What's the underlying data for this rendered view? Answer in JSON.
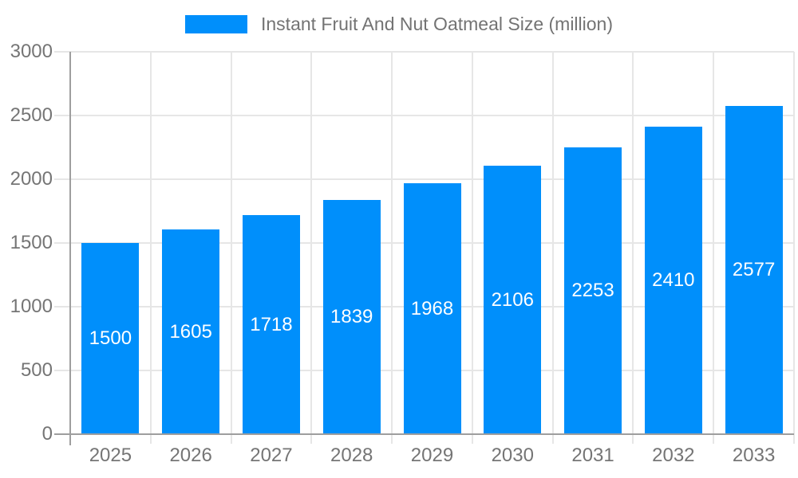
{
  "chart_data": {
    "type": "bar",
    "title": "Instant Fruit And Nut Oatmeal Size (million)",
    "series": [
      {
        "name": "Instant Fruit And Nut Oatmeal Size (million)",
        "values": [
          1500,
          1605,
          1718,
          1839,
          1968,
          2106,
          2253,
          2410,
          2577
        ]
      }
    ],
    "categories": [
      "2025",
      "2026",
      "2027",
      "2028",
      "2029",
      "2030",
      "2031",
      "2032",
      "2033"
    ],
    "xlabel": "",
    "ylabel": "",
    "ylim": [
      0,
      3000
    ],
    "yticks": [
      0,
      500,
      1000,
      1500,
      2000,
      2500,
      3000
    ],
    "grid": true,
    "legend_position": "top",
    "value_labels_inside_bars": true,
    "colors": {
      "bar": "#008FFB",
      "value_label": "#FFFFFF",
      "axis_text": "#757575",
      "title_text": "#737373",
      "gridline": "#E6E6E6",
      "axis_line": "#9E9E9E",
      "background": "#FFFFFF"
    }
  }
}
